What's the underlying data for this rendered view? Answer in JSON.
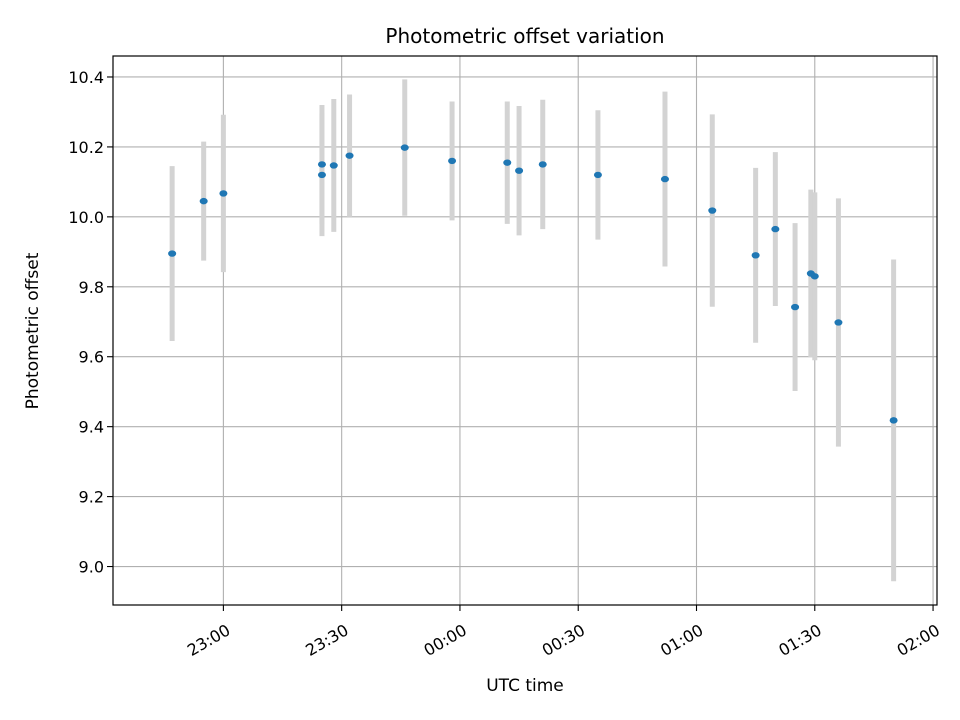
{
  "chart_data": {
    "type": "scatter",
    "title": "Photometric offset variation",
    "xlabel": "UTC time",
    "ylabel": "Photometric offset",
    "x_tick_labels": [
      "23:00",
      "23:30",
      "00:00",
      "00:30",
      "01:00",
      "01:30",
      "02:00"
    ],
    "x_ticks": [
      "23:00",
      "23:30",
      "00:00",
      "00:30",
      "01:00",
      "01:30",
      "02:00"
    ],
    "y_ticks": [
      9.0,
      9.2,
      9.4,
      9.6,
      9.8,
      10.0,
      10.2,
      10.4
    ],
    "y_tick_labels": [
      "9.0",
      "9.2",
      "9.4",
      "9.6",
      "9.8",
      "10.0",
      "10.2",
      "10.4"
    ],
    "xlim": [
      "22:32",
      "02:01"
    ],
    "ylim": [
      8.89,
      10.46
    ],
    "grid": true,
    "colors": {
      "point": "#1f77b4",
      "errorbar": "#d3d3d3",
      "grid": "#b0b0b0"
    },
    "points": [
      {
        "x": "22:47",
        "y": 9.895,
        "yerr": 0.25
      },
      {
        "x": "22:55",
        "y": 10.045,
        "yerr": 0.17
      },
      {
        "x": "23:00",
        "y": 10.067,
        "yerr": 0.225
      },
      {
        "x": "23:25",
        "y": 10.15,
        "yerr": 0.17
      },
      {
        "x": "23:25",
        "y": 10.12,
        "yerr": 0.175
      },
      {
        "x": "23:28",
        "y": 10.147,
        "yerr": 0.19
      },
      {
        "x": "23:32",
        "y": 10.175,
        "yerr": 0.175
      },
      {
        "x": "23:46",
        "y": 10.198,
        "yerr": 0.195
      },
      {
        "x": "23:58",
        "y": 10.16,
        "yerr": 0.17
      },
      {
        "x": "00:12",
        "y": 10.155,
        "yerr": 0.175
      },
      {
        "x": "00:15",
        "y": 10.132,
        "yerr": 0.185
      },
      {
        "x": "00:21",
        "y": 10.15,
        "yerr": 0.185
      },
      {
        "x": "00:35",
        "y": 10.12,
        "yerr": 0.185
      },
      {
        "x": "00:52",
        "y": 10.108,
        "yerr": 0.25
      },
      {
        "x": "01:04",
        "y": 10.018,
        "yerr": 0.275
      },
      {
        "x": "01:15",
        "y": 9.89,
        "yerr": 0.25
      },
      {
        "x": "01:20",
        "y": 9.965,
        "yerr": 0.22
      },
      {
        "x": "01:25",
        "y": 9.742,
        "yerr": 0.24
      },
      {
        "x": "01:29",
        "y": 9.838,
        "yerr": 0.24
      },
      {
        "x": "01:30",
        "y": 9.83,
        "yerr": 0.24
      },
      {
        "x": "01:36",
        "y": 9.698,
        "yerr": 0.355
      },
      {
        "x": "01:50",
        "y": 9.418,
        "yerr": 0.46
      }
    ]
  }
}
